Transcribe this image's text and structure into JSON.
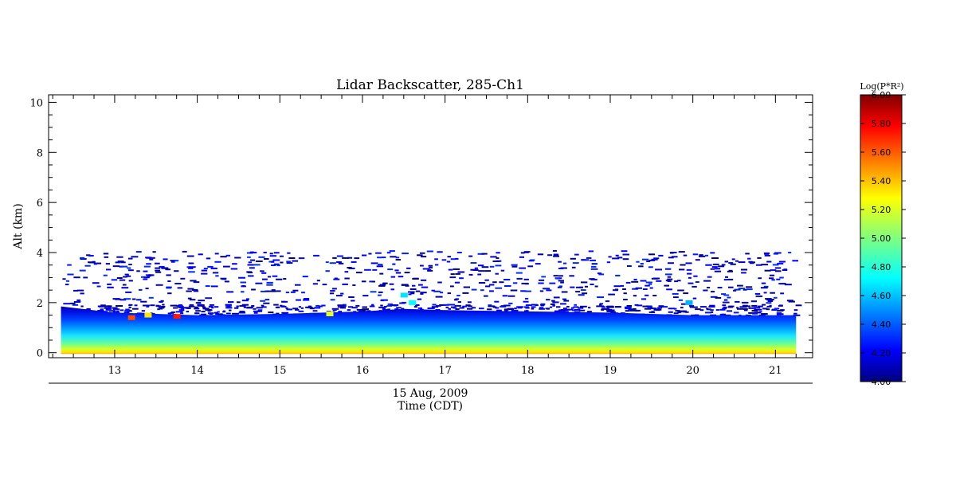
{
  "chart_data": {
    "type": "heatmap",
    "title": "Lidar Backscatter, 285-Ch1",
    "ylabel": "Alt (km)",
    "xlabel_date": "15 Aug, 2009",
    "xlabel": "Time (CDT)",
    "x_range": [
      12.2,
      21.45
    ],
    "x_data_range": [
      12.35,
      21.25
    ],
    "ylim": [
      -0.2,
      10.3
    ],
    "x_ticks": [
      "13",
      "14",
      "15",
      "16",
      "17",
      "18",
      "19",
      "20",
      "21"
    ],
    "y_ticks": [
      "0",
      "2",
      "4",
      "6",
      "8",
      "10"
    ],
    "colorbar": {
      "title": "Log(P*R²)",
      "range": [
        4.0,
        6.0
      ],
      "ticks": [
        "4.00",
        "4.20",
        "4.40",
        "4.60",
        "4.80",
        "5.00",
        "5.20",
        "5.40",
        "5.60",
        "5.80",
        "6.00"
      ],
      "colormap": "jet"
    },
    "boundary_layer_top_km": [
      {
        "time": 12.35,
        "alt": 1.85
      },
      {
        "time": 13.0,
        "alt": 1.6
      },
      {
        "time": 14.0,
        "alt": 1.5
      },
      {
        "time": 15.0,
        "alt": 1.55
      },
      {
        "time": 16.0,
        "alt": 1.65
      },
      {
        "time": 16.5,
        "alt": 1.75
      },
      {
        "time": 17.0,
        "alt": 1.7
      },
      {
        "time": 18.0,
        "alt": 1.65
      },
      {
        "time": 19.0,
        "alt": 1.6
      },
      {
        "time": 20.0,
        "alt": 1.5
      },
      {
        "time": 21.25,
        "alt": 1.5
      }
    ],
    "values_by_altitude": [
      {
        "alt": 0.05,
        "value": 5.4
      },
      {
        "alt": 0.3,
        "value": 5.1
      },
      {
        "alt": 0.6,
        "value": 4.8
      },
      {
        "alt": 1.0,
        "value": 4.5
      },
      {
        "alt": 1.4,
        "value": 4.25
      }
    ],
    "cloud_features": [
      {
        "time": 13.2,
        "alt": 1.4,
        "value": 5.6
      },
      {
        "time": 13.4,
        "alt": 1.5,
        "value": 5.3
      },
      {
        "time": 13.75,
        "alt": 1.45,
        "value": 5.7
      },
      {
        "time": 15.6,
        "alt": 1.55,
        "value": 5.2
      },
      {
        "time": 16.5,
        "alt": 2.3,
        "value": 4.7
      },
      {
        "time": 16.6,
        "alt": 2.0,
        "value": 4.75
      },
      {
        "time": 19.95,
        "alt": 2.0,
        "value": 4.6
      }
    ],
    "noise_region_km": [
      1.8,
      4.1
    ]
  }
}
